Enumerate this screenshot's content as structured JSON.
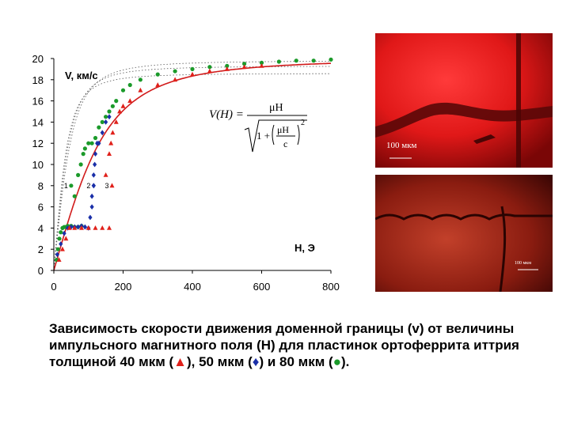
{
  "chart_data": {
    "type": "scatter",
    "x_axis": {
      "ticks": [
        "0",
        "200",
        "400",
        "600",
        "800"
      ],
      "range": [
        0,
        800
      ],
      "label": "H, Э"
    },
    "y_axis": {
      "ticks": [
        "0",
        "2",
        "4",
        "6",
        "8",
        "10",
        "12",
        "14",
        "16",
        "18",
        "20"
      ],
      "range": [
        0,
        20
      ],
      "label": "V, км/с"
    },
    "grid": false,
    "series": [
      {
        "name": "1",
        "marker": "circle",
        "color": "#1b9a2a",
        "points": [
          [
            8,
            1
          ],
          [
            12,
            2
          ],
          [
            16,
            3
          ],
          [
            20,
            3.6
          ],
          [
            25,
            4
          ],
          [
            30,
            4.1
          ],
          [
            35,
            4.1
          ],
          [
            40,
            4.2
          ],
          [
            50,
            4.2
          ],
          [
            60,
            4.1
          ],
          [
            70,
            4.1
          ],
          [
            80,
            4.2
          ],
          [
            60,
            7
          ],
          [
            70,
            9
          ],
          [
            78,
            10
          ],
          [
            85,
            11
          ],
          [
            90,
            11.5
          ],
          [
            100,
            12
          ],
          [
            110,
            12
          ],
          [
            120,
            12.5
          ],
          [
            130,
            13.5
          ],
          [
            140,
            14
          ],
          [
            150,
            14.5
          ],
          [
            160,
            15
          ],
          [
            170,
            15.5
          ],
          [
            180,
            16
          ],
          [
            200,
            17
          ],
          [
            220,
            17.5
          ],
          [
            250,
            18
          ],
          [
            300,
            18.5
          ],
          [
            350,
            18.8
          ],
          [
            400,
            19
          ],
          [
            450,
            19.2
          ],
          [
            500,
            19.3
          ],
          [
            550,
            19.5
          ],
          [
            600,
            19.6
          ],
          [
            650,
            19.7
          ],
          [
            700,
            19.8
          ],
          [
            750,
            19.8
          ],
          [
            800,
            19.9
          ]
        ]
      },
      {
        "name": "2",
        "marker": "diamond",
        "color": "#1a2fa8",
        "points": [
          [
            10,
            1.5
          ],
          [
            20,
            2.5
          ],
          [
            30,
            3.5
          ],
          [
            40,
            4
          ],
          [
            50,
            4.1
          ],
          [
            60,
            4.1
          ],
          [
            70,
            4.1
          ],
          [
            80,
            4.2
          ],
          [
            90,
            4.1
          ],
          [
            100,
            4
          ],
          [
            105,
            5
          ],
          [
            110,
            6
          ],
          [
            110,
            7
          ],
          [
            115,
            8
          ],
          [
            115,
            9
          ],
          [
            118,
            10
          ],
          [
            120,
            11
          ],
          [
            125,
            12
          ],
          [
            130,
            12
          ],
          [
            140,
            13
          ],
          [
            150,
            14
          ],
          [
            160,
            14.5
          ]
        ]
      },
      {
        "name": "3",
        "marker": "triangle",
        "color": "#e0201a",
        "points": [
          [
            15,
            1
          ],
          [
            25,
            2
          ],
          [
            35,
            3
          ],
          [
            45,
            4
          ],
          [
            60,
            4
          ],
          [
            80,
            4
          ],
          [
            100,
            4
          ],
          [
            120,
            4
          ],
          [
            140,
            4
          ],
          [
            160,
            4
          ],
          [
            150,
            9
          ],
          [
            160,
            11
          ],
          [
            165,
            12
          ],
          [
            170,
            13
          ],
          [
            180,
            14
          ],
          [
            190,
            15
          ],
          [
            200,
            15.5
          ],
          [
            220,
            16
          ],
          [
            250,
            17
          ],
          [
            300,
            17.5
          ],
          [
            350,
            18
          ],
          [
            400,
            18.5
          ],
          [
            450,
            18.8
          ],
          [
            500,
            19
          ],
          [
            550,
            19.2
          ],
          [
            600,
            19.3
          ]
        ]
      }
    ],
    "fit_curve": {
      "formula": "V(H) = μH / √(1 + (μH/c)²)",
      "color": "#d11a1a"
    }
  },
  "formula": {
    "lhs": "V(H) =",
    "num": "μH",
    "one_plus": "1 +",
    "inner_num": "μH",
    "inner_den": "c",
    "exp": "2"
  },
  "images": {
    "top_scale_label": "100 мкм",
    "bottom_scale_label": "100 мкм"
  },
  "caption": {
    "text_a": "Зависимость скорости движения доменной границы (v) от величины импульсного магнитного поля (H) для пластинок ортоферрита иттрия толщиной 40 мкм (",
    "sym_triangle": "▲",
    "text_b": "), 50 мкм (",
    "sym_diamond": "♦",
    "text_c": ") и 80 мкм (",
    "sym_circle": "●",
    "text_d": ")."
  }
}
